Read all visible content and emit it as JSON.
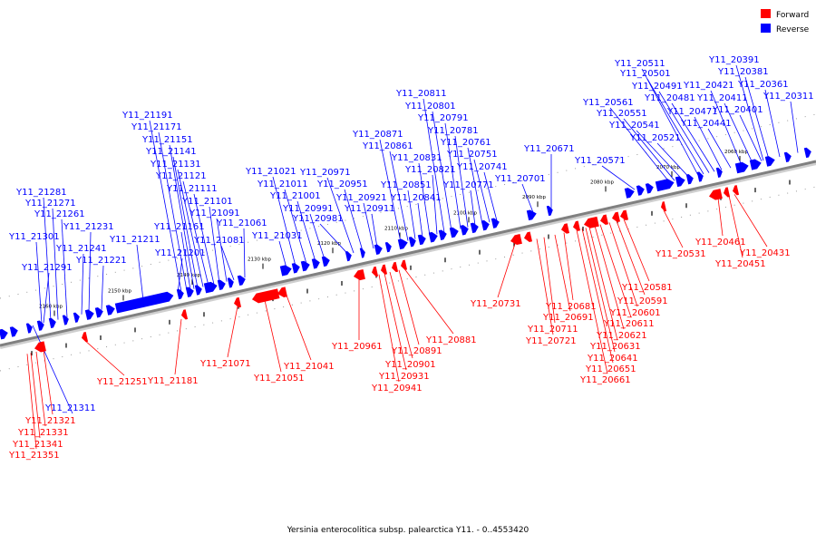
{
  "caption": "Yersinia enterocolitica subsp. palearctica Y11. - 0..4553420",
  "legend": [
    {
      "label": "Forward",
      "color": "#ff0000"
    },
    {
      "label": "Reverse",
      "color": "#0000ff"
    }
  ],
  "colors": {
    "forward": "#ff0000",
    "reverse": "#0000ff",
    "backbone": "#808080"
  },
  "ticks": [
    "2060 kbp",
    "2070 kbp",
    "2080 kbp",
    "2090 kbp",
    "2100 kbp",
    "2110 kbp",
    "2120 kbp",
    "2130 kbp",
    "2140 kbp",
    "2150 kbp",
    "2160 kbp"
  ],
  "reverse_genes": [
    "Y11_20311",
    "Y11_20361",
    "Y11_20381",
    "Y11_20391",
    "Y11_20401",
    "Y11_20411",
    "Y11_20421",
    "Y11_20441",
    "Y11_20471",
    "Y11_20481",
    "Y11_20491",
    "Y11_20501",
    "Y11_20511",
    "Y11_20521",
    "Y11_20541",
    "Y11_20551",
    "Y11_20561",
    "Y11_20571",
    "Y11_20671",
    "Y11_20701",
    "Y11_20741",
    "Y11_20751",
    "Y11_20761",
    "Y11_20771",
    "Y11_20781",
    "Y11_20791",
    "Y11_20801",
    "Y11_20811",
    "Y11_20821",
    "Y11_20831",
    "Y11_20841",
    "Y11_20851",
    "Y11_20861",
    "Y11_20871",
    "Y11_20911",
    "Y11_20921",
    "Y11_20951",
    "Y11_20971",
    "Y11_20981",
    "Y11_20991",
    "Y11_21001",
    "Y11_21011",
    "Y11_21021",
    "Y11_21031",
    "Y11_21061",
    "Y11_21081",
    "Y11_21091",
    "Y11_21101",
    "Y11_21111",
    "Y11_21121",
    "Y11_21131",
    "Y11_21141",
    "Y11_21151",
    "Y11_21161",
    "Y11_21171",
    "Y11_21191",
    "Y11_21201",
    "Y11_21211",
    "Y11_21221",
    "Y11_21231",
    "Y11_21241",
    "Y11_21261",
    "Y11_21271",
    "Y11_21281",
    "Y11_21291",
    "Y11_21301",
    "Y11_21311"
  ],
  "forward_genes": [
    "Y11_20431",
    "Y11_20451",
    "Y11_20461",
    "Y11_20531",
    "Y11_20581",
    "Y11_20591",
    "Y11_20601",
    "Y11_20611",
    "Y11_20621",
    "Y11_20631",
    "Y11_20641",
    "Y11_20651",
    "Y11_20661",
    "Y11_20681",
    "Y11_20691",
    "Y11_20711",
    "Y11_20721",
    "Y11_20731",
    "Y11_20881",
    "Y11_20891",
    "Y11_20901",
    "Y11_20931",
    "Y11_20941",
    "Y11_20961",
    "Y11_21041",
    "Y11_21051",
    "Y11_21071",
    "Y11_21181",
    "Y11_21251",
    "Y11_21321",
    "Y11_21331",
    "Y11_21341",
    "Y11_21351"
  ]
}
